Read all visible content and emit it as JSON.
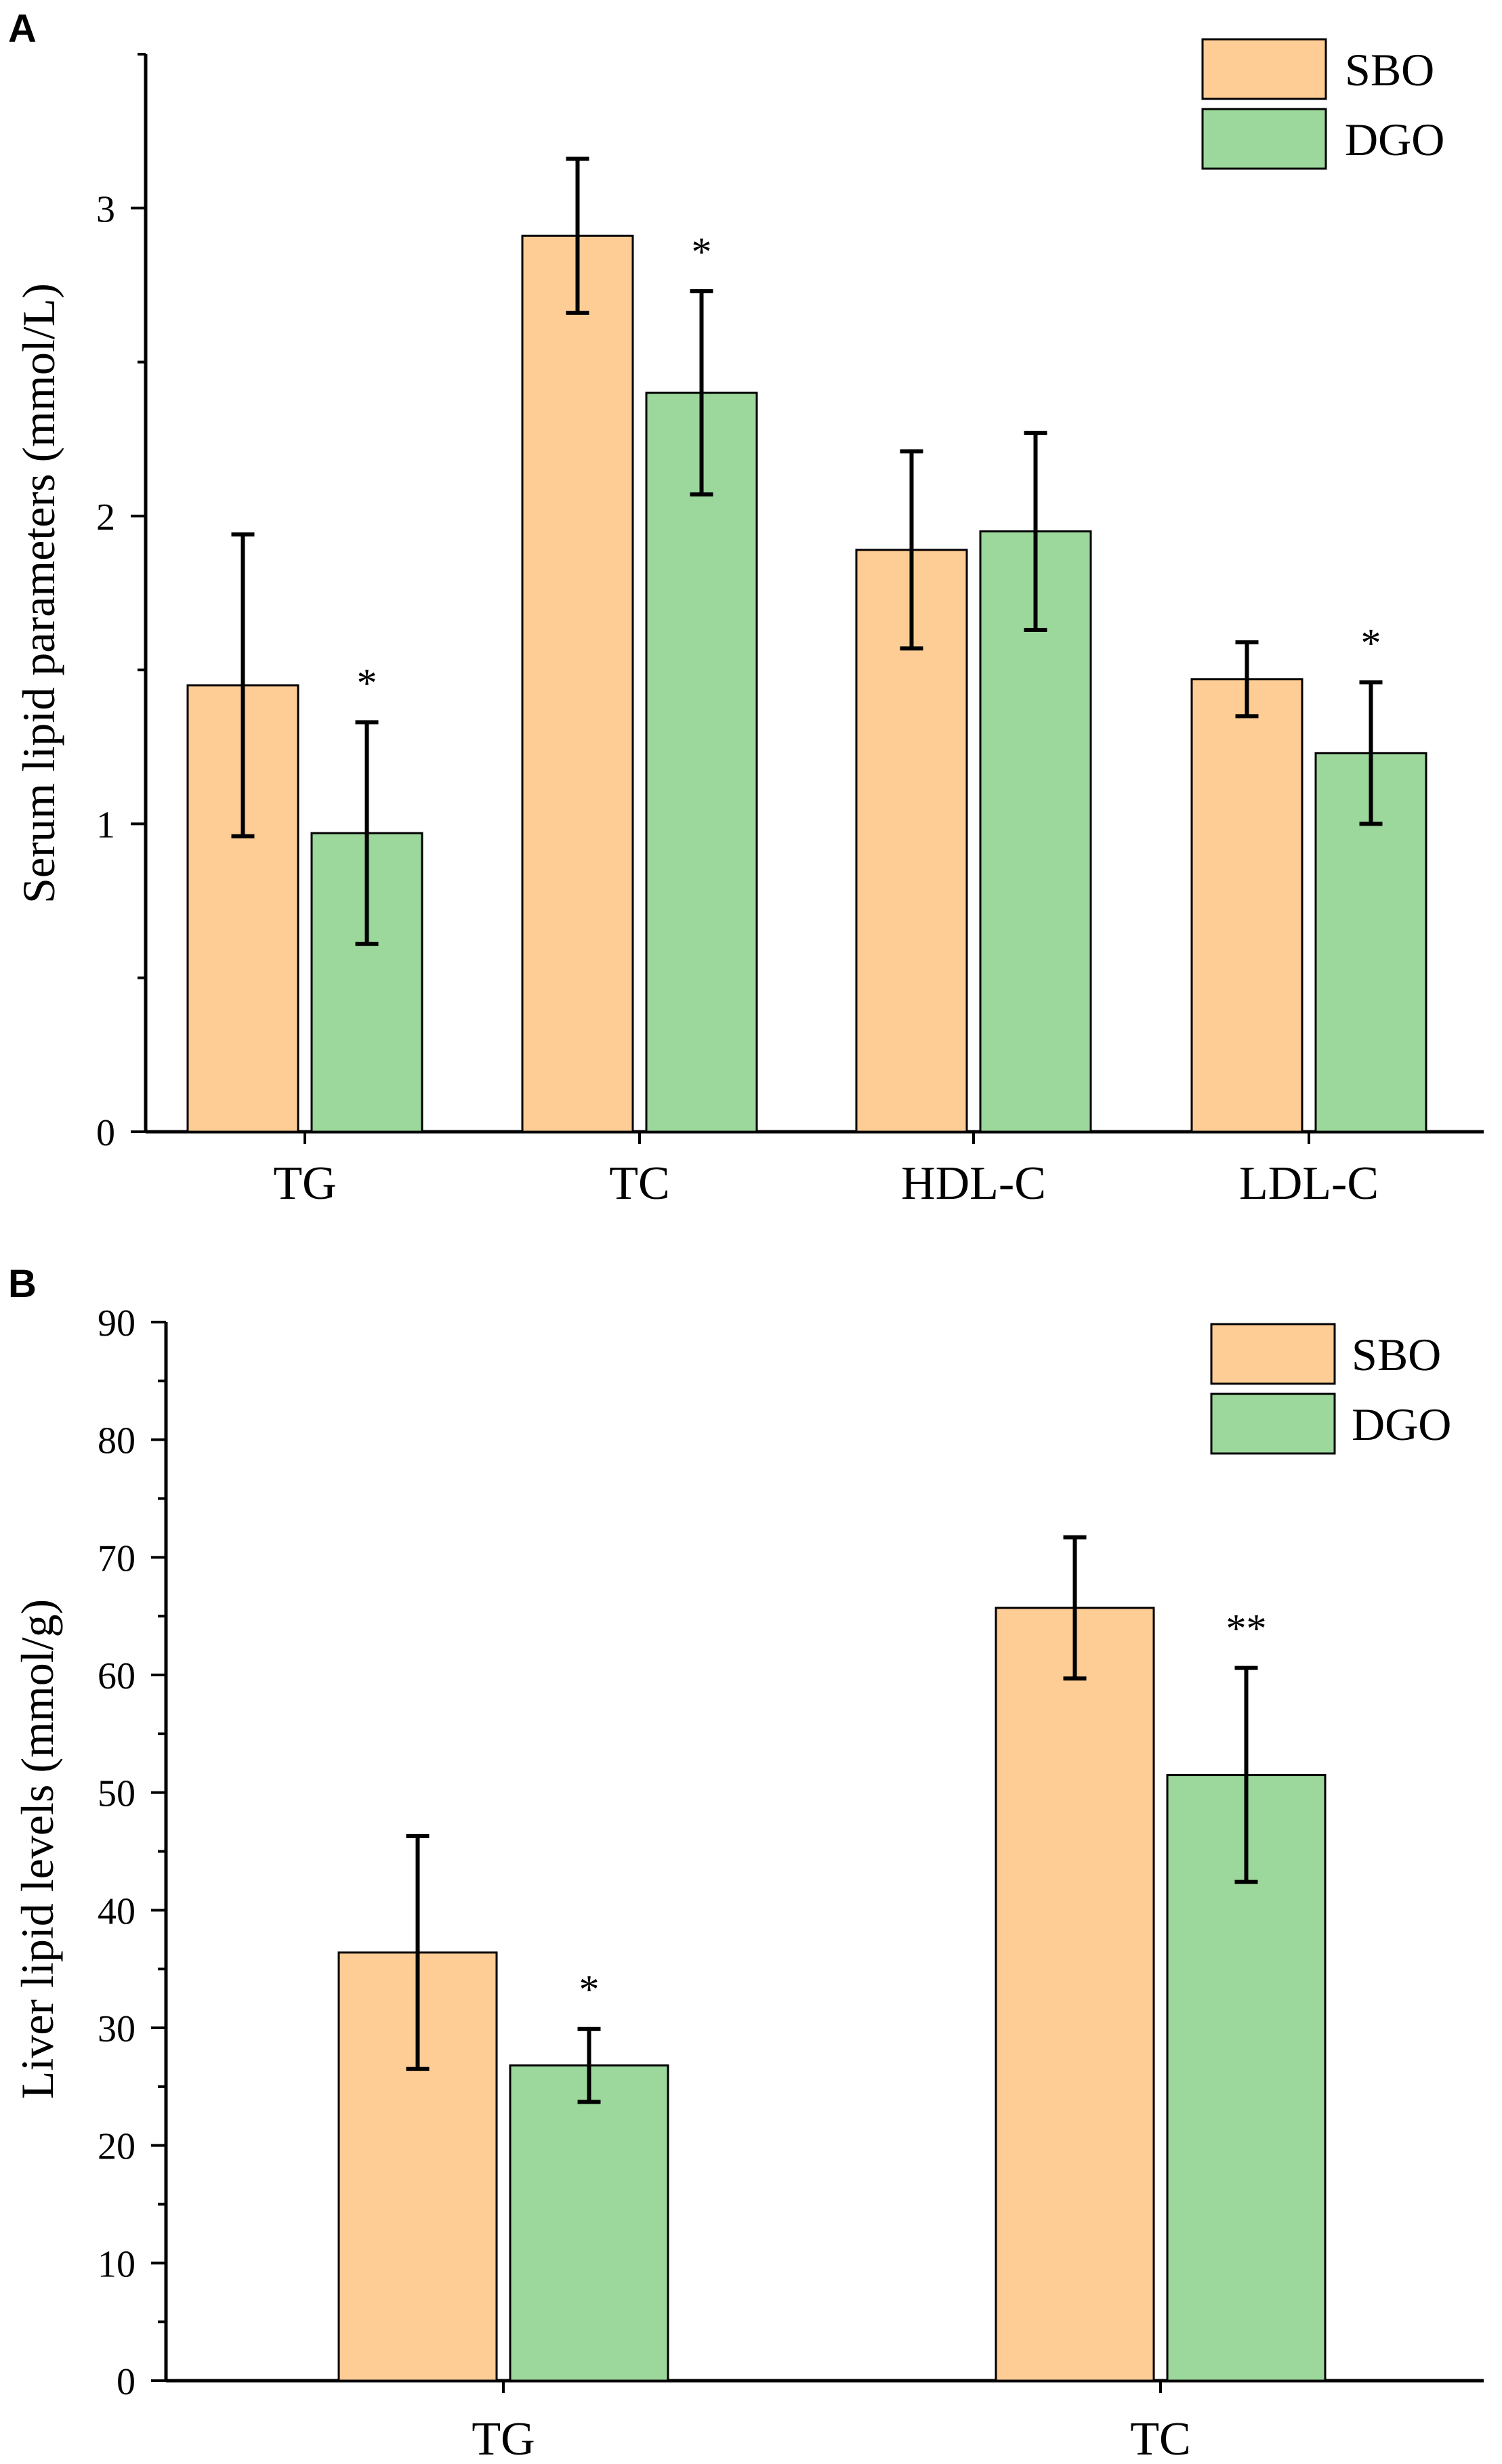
{
  "legend": {
    "series": [
      {
        "name": "SBO",
        "color": "#FECC95"
      },
      {
        "name": "DGO",
        "color": "#9CD79B"
      }
    ]
  },
  "chart_data": [
    {
      "panel": "A",
      "type": "bar",
      "ylabel": "Serum lipid parameters (mmol/L)",
      "ylim": [
        0,
        3.5
      ],
      "yticks": [
        0,
        1,
        2,
        3
      ],
      "categories": [
        "TG",
        "TC",
        "HDL-C",
        "LDL-C"
      ],
      "series": [
        {
          "name": "SBO",
          "values": [
            1.45,
            2.91,
            1.89,
            1.47
          ],
          "errors": [
            0.49,
            0.25,
            0.32,
            0.12
          ]
        },
        {
          "name": "DGO",
          "values": [
            0.97,
            2.4,
            1.95,
            1.23
          ],
          "errors": [
            0.36,
            0.33,
            0.32,
            0.23
          ]
        }
      ],
      "annotations": [
        {
          "category": "TG",
          "series": "DGO",
          "text": "*"
        },
        {
          "category": "TC",
          "series": "DGO",
          "text": "*"
        },
        {
          "category": "LDL-C",
          "series": "DGO",
          "text": "*"
        }
      ]
    },
    {
      "panel": "B",
      "type": "bar",
      "ylabel": "Liver lipid levels (mmol/g)",
      "ylim": [
        0,
        90
      ],
      "yticks": [
        0,
        10,
        20,
        30,
        40,
        50,
        60,
        70,
        80,
        90
      ],
      "categories": [
        "TG",
        "TC"
      ],
      "series": [
        {
          "name": "SBO",
          "values": [
            36.4,
            65.7
          ],
          "errors": [
            9.9,
            6.0
          ]
        },
        {
          "name": "DGO",
          "values": [
            26.8,
            51.5
          ],
          "errors": [
            3.1,
            9.1
          ]
        }
      ],
      "annotations": [
        {
          "category": "TG",
          "series": "DGO",
          "text": "*"
        },
        {
          "category": "TC",
          "series": "DGO",
          "text": "**"
        }
      ]
    }
  ]
}
